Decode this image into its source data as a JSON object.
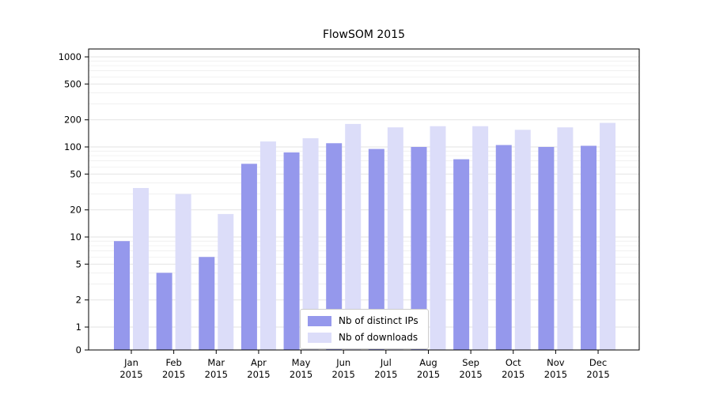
{
  "title": "FlowSOM 2015",
  "chart_data": {
    "type": "bar",
    "title": "FlowSOM 2015",
    "scale": "symlog",
    "grid": true,
    "legend_position": "lower center",
    "categories": [
      "Jan",
      "Feb",
      "Mar",
      "Apr",
      "May",
      "Jun",
      "Jul",
      "Aug",
      "Sep",
      "Oct",
      "Nov",
      "Dec"
    ],
    "category_year": "2015",
    "series": [
      {
        "name": "Nb of distinct IPs",
        "color": "#9598ec",
        "values": [
          9,
          4,
          6,
          65,
          87,
          110,
          95,
          100,
          73,
          105,
          100,
          103
        ]
      },
      {
        "name": "Nb of downloads",
        "color": "#dcddf9",
        "values": [
          35,
          30,
          18,
          115,
          125,
          180,
          165,
          170,
          170,
          155,
          165,
          185
        ]
      }
    ],
    "yticks": [
      0,
      1,
      2,
      5,
      10,
      20,
      50,
      100,
      200,
      500,
      1000
    ],
    "ylim": [
      0,
      1000
    ],
    "axis_color": "#000000",
    "grid_major_color": "#e0e0e0",
    "grid_minor_color": "#ececec"
  }
}
